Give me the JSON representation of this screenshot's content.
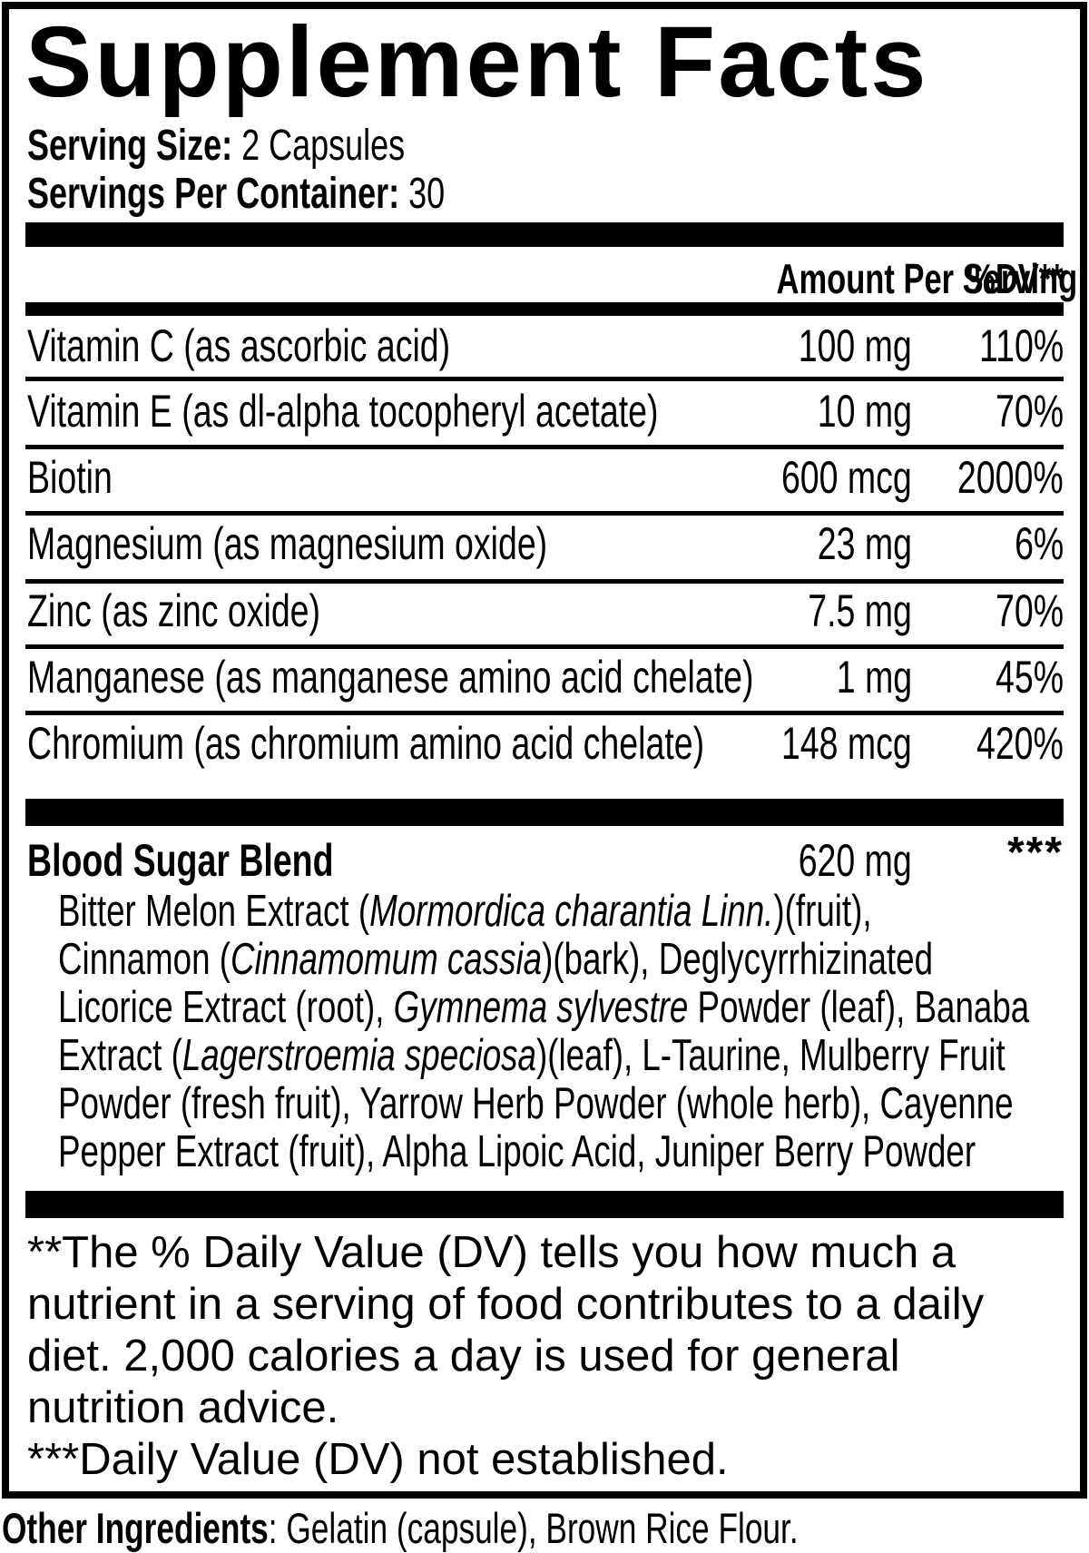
{
  "label": {
    "colors": {
      "ink": "#000000",
      "paper": "#ffffff"
    },
    "title": "Supplement Facts",
    "serving_size_label": "Serving Size:",
    "serving_size_value": " 2 Capsules",
    "servings_per_container_label": "Servings Per Container:",
    "servings_per_container_value": " 30",
    "header": {
      "amount": "Amount Per Serving",
      "dv": "%DV**"
    },
    "nutrients": [
      {
        "name": "Vitamin C (as ascorbic acid)",
        "amount": "100 mg",
        "dv": "110%"
      },
      {
        "name": "Vitamin E (as dl-alpha tocopheryl acetate)",
        "amount": "10 mg",
        "dv": "70%"
      },
      {
        "name": "Biotin",
        "amount": "600 mcg",
        "dv": "2000%"
      },
      {
        "name": "Magnesium (as magnesium oxide)",
        "amount": "23 mg",
        "dv": "6%"
      },
      {
        "name": "Zinc (as zinc oxide)",
        "amount": "7.5 mg",
        "dv": "70%"
      },
      {
        "name": "Manganese (as manganese amino acid chelate)",
        "amount": "1 mg",
        "dv": "45%"
      },
      {
        "name": "Chromium (as chromium amino acid chelate)",
        "amount": "148 mcg",
        "dv": "420%"
      }
    ],
    "blend": {
      "name": "Blood Sugar Blend",
      "amount": "620 mg",
      "dv": "***",
      "ingredients_lines": [
        [
          {
            "t": "Bitter Melon Extract (",
            "i": false
          },
          {
            "t": "Mormordica charantia Linn.",
            "i": true
          },
          {
            "t": ")(fruit),",
            "i": false
          }
        ],
        [
          {
            "t": "Cinnamon (",
            "i": false
          },
          {
            "t": "Cinnamomum cassia",
            "i": true
          },
          {
            "t": ")(bark), Deglycyrrhizinated",
            "i": false
          }
        ],
        [
          {
            "t": "Licorice Extract (root), ",
            "i": false
          },
          {
            "t": "Gymnema sylvestre",
            "i": true
          },
          {
            "t": " Powder (leaf), Banaba",
            "i": false
          }
        ],
        [
          {
            "t": "Extract (",
            "i": false
          },
          {
            "t": "Lagerstroemia speciosa",
            "i": true
          },
          {
            "t": ")(leaf), L-Taurine, Mulberry Fruit",
            "i": false
          }
        ],
        [
          {
            "t": "Powder (fresh fruit), Yarrow Herb Powder (whole herb), Cayenne",
            "i": false
          }
        ],
        [
          {
            "t": "Pepper Extract (fruit), Alpha Lipoic Acid, Juniper Berry Powder",
            "i": false
          }
        ]
      ]
    },
    "footnotes": [
      "**The % Daily Value (DV) tells you how much a",
      "nutrient in a serving of food contributes to a daily",
      "diet. 2,000 calories a day is used for general",
      "nutrition advice.",
      "***Daily Value (DV) not established."
    ],
    "other_ingredients_label": "Other Ingredients",
    "other_ingredients_value": ": Gelatin (capsule), Brown Rice Flour."
  }
}
